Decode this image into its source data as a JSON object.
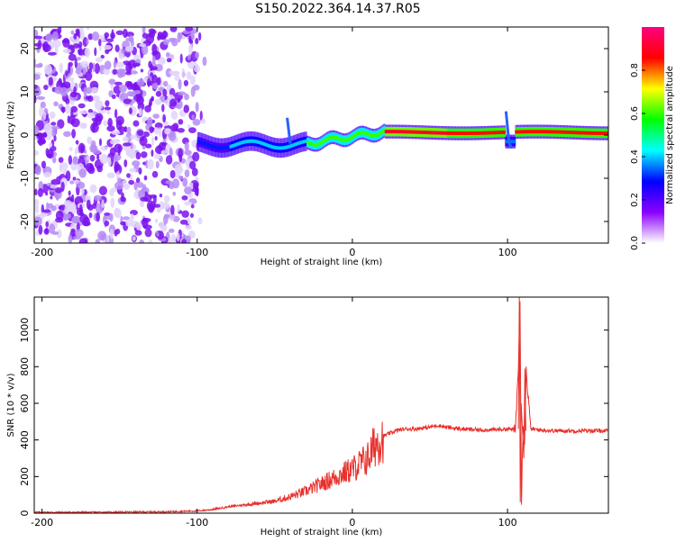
{
  "title": "S150.2022.364.14.37.R05",
  "chart_data": [
    {
      "type": "heatmap",
      "name": "spectrogram",
      "xlabel": "Height of straight line (km)",
      "ylabel": "Frequency (Hz)",
      "xlim": [
        -205,
        165
      ],
      "ylim": [
        -25,
        25
      ],
      "xticks": [
        -200,
        -100,
        0,
        100
      ],
      "yticks": [
        -20,
        -10,
        0,
        10,
        20
      ],
      "colorbar": {
        "label": "Normalized spectral amplitude",
        "range": [
          0.0,
          1.0
        ],
        "ticks": [
          0.0,
          0.2,
          0.4,
          0.6,
          0.8
        ],
        "colormap": "rainbow",
        "stops": [
          "#ffffff",
          "#8b00ff",
          "#0000ff",
          "#00ffff",
          "#00ff00",
          "#ffff00",
          "#ff0000",
          "#ff0080"
        ]
      },
      "grid": false
    },
    {
      "type": "line",
      "name": "snr",
      "xlabel": "Height of straight line (km)",
      "ylabel": "SNR (10 * v/v)",
      "xlim": [
        -205,
        165
      ],
      "ylim": [
        0,
        1180
      ],
      "xticks": [
        -200,
        -100,
        0,
        100
      ],
      "yticks": [
        0,
        200,
        400,
        600,
        800,
        1000
      ],
      "grid": false,
      "color": "#e8302c",
      "series": [
        {
          "x": [
            -205,
            -180,
            -150,
            -120,
            -100,
            -90,
            -80,
            -70,
            -60,
            -50,
            -40,
            -30,
            -25,
            -20,
            -15,
            -10,
            -5,
            0,
            5,
            10,
            15,
            20,
            25,
            30,
            35,
            40,
            45,
            50,
            55,
            60,
            70,
            80,
            90,
            100,
            105,
            107,
            108,
            109,
            110,
            111,
            112,
            115,
            120,
            130,
            140,
            150,
            160,
            165
          ],
          "y": [
            5,
            5,
            6,
            8,
            12,
            20,
            35,
            45,
            55,
            65,
            90,
            120,
            140,
            160,
            180,
            200,
            220,
            240,
            270,
            300,
            380,
            420,
            440,
            455,
            460,
            460,
            465,
            470,
            480,
            470,
            460,
            455,
            455,
            460,
            455,
            800,
            1180,
            60,
            500,
            400,
            780,
            460,
            455,
            450,
            450,
            450,
            450,
            450
          ]
        }
      ]
    }
  ]
}
